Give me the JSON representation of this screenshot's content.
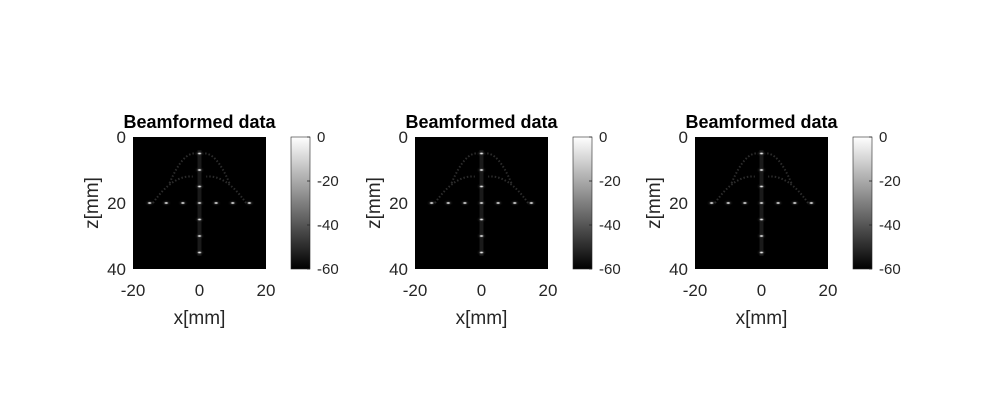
{
  "chart_data": [
    {
      "type": "heatmap",
      "title": "Beamformed data",
      "xlabel": "x[mm]",
      "ylabel": "z[mm]",
      "xlim": [
        -20,
        20
      ],
      "ylim": [
        0,
        40
      ],
      "y_reversed": true,
      "x_ticks": [
        "-20",
        "0",
        "20"
      ],
      "y_ticks": [
        "0",
        "20",
        "40"
      ],
      "colormap": "gray",
      "colorbar": {
        "range": [
          -60,
          0
        ],
        "ticks": [
          "0",
          "-20",
          "-40",
          "-60"
        ]
      },
      "point_targets": [
        {
          "x": 0,
          "z": 5
        },
        {
          "x": 0,
          "z": 10
        },
        {
          "x": 0,
          "z": 15
        },
        {
          "x": -15,
          "z": 20
        },
        {
          "x": -10,
          "z": 20
        },
        {
          "x": -5,
          "z": 20
        },
        {
          "x": 0,
          "z": 20
        },
        {
          "x": 5,
          "z": 20
        },
        {
          "x": 10,
          "z": 20
        },
        {
          "x": 15,
          "z": 20
        },
        {
          "x": 0,
          "z": 25
        },
        {
          "x": 0,
          "z": 30
        },
        {
          "x": 0,
          "z": 35
        }
      ]
    },
    {
      "type": "heatmap",
      "title": "Beamformed data",
      "xlabel": "x[mm]",
      "ylabel": "z[mm]",
      "xlim": [
        -20,
        20
      ],
      "ylim": [
        0,
        40
      ],
      "y_reversed": true,
      "x_ticks": [
        "-20",
        "0",
        "20"
      ],
      "y_ticks": [
        "0",
        "20",
        "40"
      ],
      "colormap": "gray",
      "colorbar": {
        "range": [
          -60,
          0
        ],
        "ticks": [
          "0",
          "-20",
          "-40",
          "-60"
        ]
      },
      "point_targets": [
        {
          "x": 0,
          "z": 5
        },
        {
          "x": 0,
          "z": 10
        },
        {
          "x": 0,
          "z": 15
        },
        {
          "x": -15,
          "z": 20
        },
        {
          "x": -10,
          "z": 20
        },
        {
          "x": -5,
          "z": 20
        },
        {
          "x": 0,
          "z": 20
        },
        {
          "x": 5,
          "z": 20
        },
        {
          "x": 10,
          "z": 20
        },
        {
          "x": 15,
          "z": 20
        },
        {
          "x": 0,
          "z": 25
        },
        {
          "x": 0,
          "z": 30
        },
        {
          "x": 0,
          "z": 35
        }
      ]
    },
    {
      "type": "heatmap",
      "title": "Beamformed data",
      "xlabel": "x[mm]",
      "ylabel": "z[mm]",
      "xlim": [
        -20,
        20
      ],
      "ylim": [
        0,
        40
      ],
      "y_reversed": true,
      "x_ticks": [
        "-20",
        "0",
        "20"
      ],
      "y_ticks": [
        "0",
        "20",
        "40"
      ],
      "colormap": "gray",
      "colorbar": {
        "range": [
          -60,
          0
        ],
        "ticks": [
          "0",
          "-20",
          "-40",
          "-60"
        ]
      },
      "point_targets": [
        {
          "x": 0,
          "z": 5
        },
        {
          "x": 0,
          "z": 10
        },
        {
          "x": 0,
          "z": 15
        },
        {
          "x": -15,
          "z": 20
        },
        {
          "x": -10,
          "z": 20
        },
        {
          "x": -5,
          "z": 20
        },
        {
          "x": 0,
          "z": 20
        },
        {
          "x": 5,
          "z": 20
        },
        {
          "x": 10,
          "z": 20
        },
        {
          "x": 15,
          "z": 20
        },
        {
          "x": 0,
          "z": 25
        },
        {
          "x": 0,
          "z": 30
        },
        {
          "x": 0,
          "z": 35
        }
      ]
    }
  ]
}
